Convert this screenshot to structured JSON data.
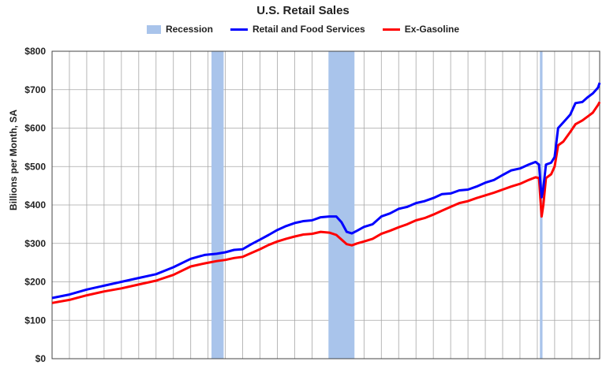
{
  "chart_data": {
    "type": "line",
    "title": "U.S. Retail Sales",
    "ylabel": "Billions per Month, SA",
    "xlabel": "",
    "x_range": [
      1992.0,
      2023.6
    ],
    "ylim": [
      0,
      800
    ],
    "y_ticks": [
      0,
      100,
      200,
      300,
      400,
      500,
      600,
      700,
      800
    ],
    "y_tick_labels": [
      "$0",
      "$100",
      "$200",
      "$300",
      "$400",
      "$500",
      "$600",
      "$700",
      "$800"
    ],
    "grid": true,
    "legend_position": "top-center",
    "legend": [
      "Recession",
      "Retail and Food Services",
      "Ex-Gasoline"
    ],
    "recessions": [
      {
        "start": 2001.2,
        "end": 2001.9
      },
      {
        "start": 2007.95,
        "end": 2009.45
      },
      {
        "start": 2020.15,
        "end": 2020.3
      }
    ],
    "series": [
      {
        "name": "Retail and Food Services",
        "color": "#0000ff",
        "points": [
          [
            1992.0,
            158
          ],
          [
            1993.0,
            167
          ],
          [
            1994.0,
            180
          ],
          [
            1995.0,
            190
          ],
          [
            1996.0,
            200
          ],
          [
            1997.0,
            210
          ],
          [
            1998.0,
            220
          ],
          [
            1999.0,
            238
          ],
          [
            2000.0,
            260
          ],
          [
            2000.8,
            270
          ],
          [
            2001.5,
            273
          ],
          [
            2002.0,
            277
          ],
          [
            2002.5,
            283
          ],
          [
            2003.0,
            285
          ],
          [
            2003.5,
            298
          ],
          [
            2004.0,
            310
          ],
          [
            2004.5,
            322
          ],
          [
            2005.0,
            335
          ],
          [
            2005.5,
            345
          ],
          [
            2006.0,
            353
          ],
          [
            2006.5,
            358
          ],
          [
            2007.0,
            360
          ],
          [
            2007.5,
            368
          ],
          [
            2008.0,
            370
          ],
          [
            2008.4,
            370
          ],
          [
            2008.7,
            355
          ],
          [
            2009.0,
            330
          ],
          [
            2009.3,
            326
          ],
          [
            2009.6,
            333
          ],
          [
            2010.0,
            343
          ],
          [
            2010.5,
            350
          ],
          [
            2011.0,
            370
          ],
          [
            2011.5,
            378
          ],
          [
            2012.0,
            390
          ],
          [
            2012.5,
            395
          ],
          [
            2013.0,
            405
          ],
          [
            2013.5,
            410
          ],
          [
            2014.0,
            418
          ],
          [
            2014.5,
            428
          ],
          [
            2015.0,
            430
          ],
          [
            2015.5,
            438
          ],
          [
            2016.0,
            440
          ],
          [
            2016.5,
            448
          ],
          [
            2017.0,
            458
          ],
          [
            2017.5,
            465
          ],
          [
            2018.0,
            478
          ],
          [
            2018.5,
            490
          ],
          [
            2019.0,
            495
          ],
          [
            2019.5,
            505
          ],
          [
            2019.9,
            512
          ],
          [
            2020.1,
            505
          ],
          [
            2020.25,
            420
          ],
          [
            2020.35,
            445
          ],
          [
            2020.5,
            505
          ],
          [
            2020.8,
            510
          ],
          [
            2021.0,
            525
          ],
          [
            2021.2,
            600
          ],
          [
            2021.5,
            615
          ],
          [
            2021.9,
            635
          ],
          [
            2022.2,
            665
          ],
          [
            2022.6,
            668
          ],
          [
            2022.9,
            680
          ],
          [
            2023.2,
            690
          ],
          [
            2023.5,
            705
          ],
          [
            2023.6,
            718
          ]
        ]
      },
      {
        "name": "Ex-Gasoline",
        "color": "#ff0000",
        "points": [
          [
            1992.0,
            145
          ],
          [
            1993.0,
            153
          ],
          [
            1994.0,
            165
          ],
          [
            1995.0,
            175
          ],
          [
            1996.0,
            183
          ],
          [
            1997.0,
            193
          ],
          [
            1998.0,
            203
          ],
          [
            1999.0,
            218
          ],
          [
            2000.0,
            240
          ],
          [
            2000.8,
            248
          ],
          [
            2001.5,
            254
          ],
          [
            2002.0,
            257
          ],
          [
            2002.5,
            262
          ],
          [
            2003.0,
            265
          ],
          [
            2003.5,
            275
          ],
          [
            2004.0,
            285
          ],
          [
            2004.5,
            296
          ],
          [
            2005.0,
            305
          ],
          [
            2005.5,
            312
          ],
          [
            2006.0,
            318
          ],
          [
            2006.5,
            323
          ],
          [
            2007.0,
            325
          ],
          [
            2007.5,
            330
          ],
          [
            2008.0,
            328
          ],
          [
            2008.4,
            322
          ],
          [
            2008.7,
            310
          ],
          [
            2009.0,
            298
          ],
          [
            2009.3,
            295
          ],
          [
            2009.6,
            300
          ],
          [
            2010.0,
            305
          ],
          [
            2010.5,
            312
          ],
          [
            2011.0,
            325
          ],
          [
            2011.5,
            333
          ],
          [
            2012.0,
            342
          ],
          [
            2012.5,
            350
          ],
          [
            2013.0,
            360
          ],
          [
            2013.5,
            366
          ],
          [
            2014.0,
            375
          ],
          [
            2014.5,
            385
          ],
          [
            2015.0,
            395
          ],
          [
            2015.5,
            405
          ],
          [
            2016.0,
            410
          ],
          [
            2016.5,
            418
          ],
          [
            2017.0,
            425
          ],
          [
            2017.5,
            432
          ],
          [
            2018.0,
            440
          ],
          [
            2018.5,
            448
          ],
          [
            2019.0,
            455
          ],
          [
            2019.5,
            465
          ],
          [
            2019.9,
            472
          ],
          [
            2020.1,
            470
          ],
          [
            2020.25,
            370
          ],
          [
            2020.35,
            400
          ],
          [
            2020.5,
            470
          ],
          [
            2020.8,
            480
          ],
          [
            2021.0,
            500
          ],
          [
            2021.2,
            555
          ],
          [
            2021.5,
            565
          ],
          [
            2021.9,
            590
          ],
          [
            2022.2,
            610
          ],
          [
            2022.6,
            620
          ],
          [
            2022.9,
            630
          ],
          [
            2023.2,
            640
          ],
          [
            2023.5,
            660
          ],
          [
            2023.6,
            668
          ]
        ]
      }
    ]
  },
  "colors": {
    "recession": "#a9c4eb",
    "grid": "#a6a6a6",
    "axis": "#444444"
  }
}
